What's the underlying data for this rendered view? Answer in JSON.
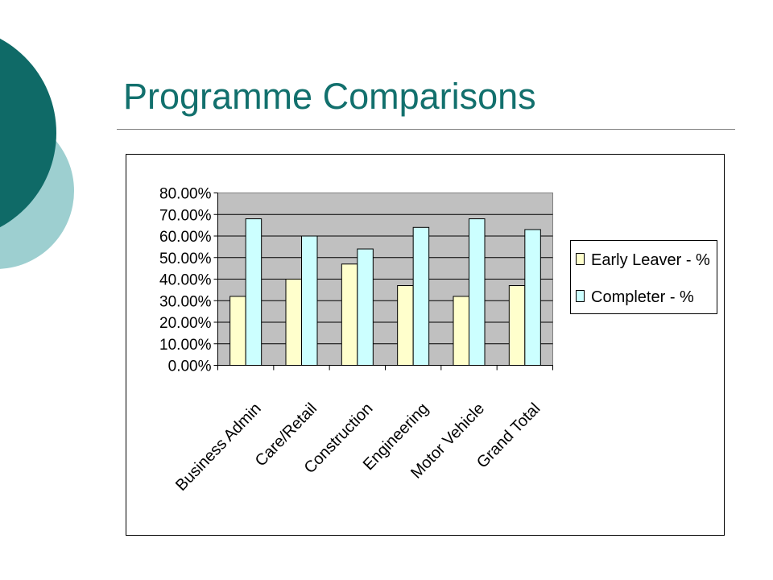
{
  "slide": {
    "title": "Programme Comparisons",
    "colors": {
      "title": "#12706d",
      "circle_dark": "#0f6a67",
      "circle_light": "#9dcfd0"
    }
  },
  "chart_data": {
    "type": "bar",
    "categories": [
      "Business Admin",
      "Care/Retail",
      "Construction",
      "Engineering",
      "Motor Vehicle",
      "Grand Total"
    ],
    "series": [
      {
        "name": "Early Leaver - %",
        "color": "#ffffcc",
        "values": [
          0.32,
          0.4,
          0.47,
          0.37,
          0.32,
          0.37
        ]
      },
      {
        "name": "Completer - %",
        "color": "#ccffff",
        "values": [
          0.68,
          0.6,
          0.54,
          0.64,
          0.68,
          0.63
        ]
      }
    ],
    "yticks": [
      "0.00%",
      "10.00%",
      "20.00%",
      "30.00%",
      "40.00%",
      "50.00%",
      "60.00%",
      "70.00%",
      "80.00%"
    ],
    "ylim": [
      0,
      0.8
    ],
    "grid": true,
    "legend": "right",
    "plot_background": "#c0c0c0"
  }
}
